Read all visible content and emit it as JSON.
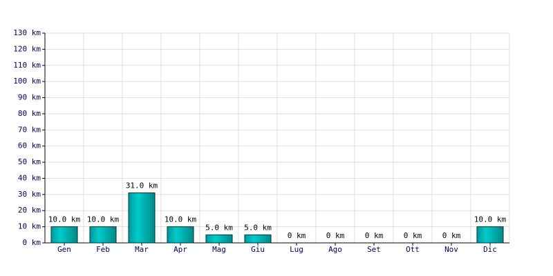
{
  "chart_data": {
    "type": "bar",
    "categories": [
      "Gen",
      "Feb",
      "Mar",
      "Apr",
      "Mag",
      "Giu",
      "Lug",
      "Ago",
      "Set",
      "Ott",
      "Nov",
      "Dic"
    ],
    "values": [
      10,
      10,
      31,
      10,
      5,
      5,
      0,
      0,
      0,
      0,
      0,
      10
    ],
    "value_labels": [
      "10.0 km",
      "10.0 km",
      "31.0 km",
      "10.0 km",
      "5.0 km",
      "5.0 km",
      "0 km",
      "0 km",
      "0 km",
      "0 km",
      "0 km",
      "10.0 km"
    ],
    "color": "#00cccc",
    "ylim": [
      0,
      130
    ],
    "yticks": [
      {
        "value": 0,
        "label": "0 km"
      },
      {
        "value": 10,
        "label": "10 km"
      },
      {
        "value": 20,
        "label": "20 km"
      },
      {
        "value": 30,
        "label": "30 km"
      },
      {
        "value": 40,
        "label": "40 km"
      },
      {
        "value": 50,
        "label": "50 km"
      },
      {
        "value": 60,
        "label": "60 km"
      },
      {
        "value": 70,
        "label": "70 km"
      },
      {
        "value": 80,
        "label": "80 km"
      },
      {
        "value": 90,
        "label": "90 km"
      },
      {
        "value": 100,
        "label": "100 km"
      },
      {
        "value": 110,
        "label": "110 km"
      },
      {
        "value": 120,
        "label": "120 km"
      },
      {
        "value": 130,
        "label": "130 km"
      }
    ],
    "grid": true
  }
}
